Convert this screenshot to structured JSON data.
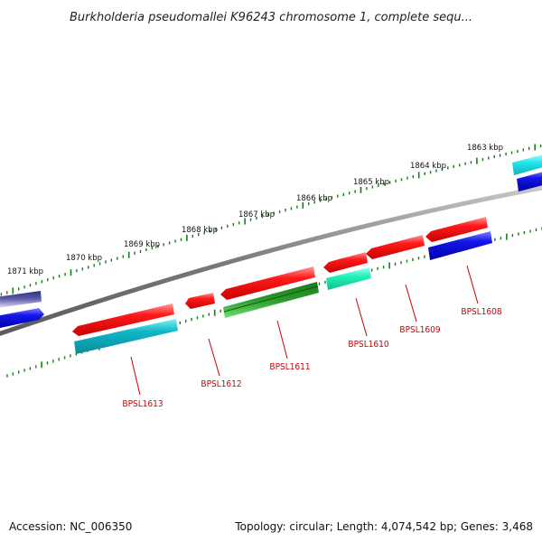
{
  "title": "Burkholderia pseudomallei K96243 chromosome 1, complete sequ...",
  "footer": {
    "accession": "Accession: NC_006350",
    "summary": "Topology: circular; Length: 4,074,542 bp; Genes: 3,468"
  },
  "colors": {
    "backbone": "#808080",
    "tick": "#1a7a1a",
    "label": "#cc0000",
    "red": "#ff1a1a",
    "blue": "#1515e8",
    "teal": "#10b8c8",
    "green": "#2a9a2a",
    "aqua": "#22f0b8",
    "cyan": "#20e8ec",
    "navy": "#40409a"
  },
  "scale": {
    "unit": "kbp",
    "labels": [
      {
        "kbp": 1871,
        "text": "1871 kbp"
      },
      {
        "kbp": 1870,
        "text": "1870 kbp"
      },
      {
        "kbp": 1869,
        "text": "1869 kbp"
      },
      {
        "kbp": 1868,
        "text": "1868 kbp"
      },
      {
        "kbp": 1867,
        "text": "1867 kbp"
      },
      {
        "kbp": 1866,
        "text": "1866 kbp"
      },
      {
        "kbp": 1865,
        "text": "1865 kbp"
      },
      {
        "kbp": 1864,
        "text": "1864 kbp"
      },
      {
        "kbp": 1863,
        "text": "1863 kbp"
      }
    ]
  },
  "gene_labels": [
    {
      "name": "BPSL1613",
      "text": "BPSL1613"
    },
    {
      "name": "BPSL1612",
      "text": "BPSL1612"
    },
    {
      "name": "BPSL1611",
      "text": "BPSL1611"
    },
    {
      "name": "BPSL1610",
      "text": "BPSL1610"
    },
    {
      "name": "BPSL1609",
      "text": "BPSL1609"
    },
    {
      "name": "BPSL1608",
      "text": "BPSL1608"
    }
  ]
}
